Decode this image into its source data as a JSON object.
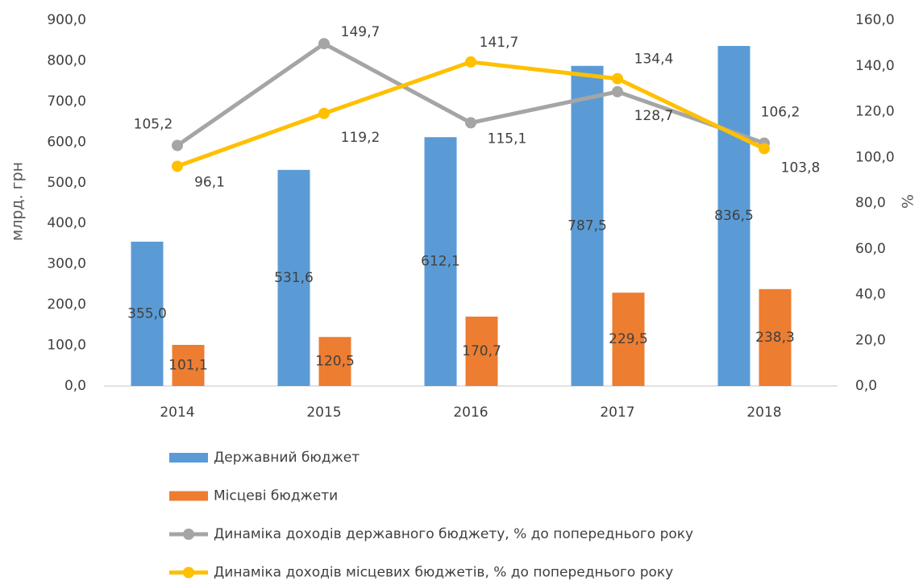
{
  "chart_data": {
    "type": "bar",
    "categories": [
      "2014",
      "2015",
      "2016",
      "2017",
      "2018"
    ],
    "y_label": "млрд. грн",
    "y2_label": "%",
    "ylim": [
      0,
      900
    ],
    "yticks": [
      {
        "value": 0,
        "label": "0,0"
      },
      {
        "value": 100,
        "label": "100,0"
      },
      {
        "value": 200,
        "label": "200,0"
      },
      {
        "value": 300,
        "label": "300,0"
      },
      {
        "value": 400,
        "label": "400,0"
      },
      {
        "value": 500,
        "label": "500,0"
      },
      {
        "value": 600,
        "label": "600,0"
      },
      {
        "value": 700,
        "label": "700,0"
      },
      {
        "value": 800,
        "label": "800,0"
      },
      {
        "value": 900,
        "label": "900,0"
      }
    ],
    "y2lim": [
      0,
      160
    ],
    "y2ticks": [
      {
        "value": 0,
        "label": "0,0"
      },
      {
        "value": 20,
        "label": "20,0"
      },
      {
        "value": 40,
        "label": "40,0"
      },
      {
        "value": 60,
        "label": "60,0"
      },
      {
        "value": 80,
        "label": "80,0"
      },
      {
        "value": 100,
        "label": "100,0"
      },
      {
        "value": 120,
        "label": "120,0"
      },
      {
        "value": 140,
        "label": "140,0"
      },
      {
        "value": 160,
        "label": "160,0"
      }
    ],
    "grid": false,
    "legend": "bottom",
    "series": [
      {
        "name": "Державний бюджет",
        "type": "bar",
        "color": "#5b9bd5",
        "values": [
          355.0,
          531.6,
          612.1,
          787.5,
          836.5
        ],
        "value_labels": [
          "355,0",
          "531,6",
          "612,1",
          "787,5",
          "836,5"
        ]
      },
      {
        "name": "Місцеві бюджети",
        "type": "bar",
        "color": "#ed7d31",
        "values": [
          101.1,
          120.5,
          170.7,
          229.5,
          238.3
        ],
        "value_labels": [
          "101,1",
          "120,5",
          "170,7",
          "229,5",
          "238,3"
        ]
      },
      {
        "name": "Динаміка доходів державного бюджету, % до попереднього року",
        "type": "line",
        "axis": "y2",
        "color": "#a5a5a5",
        "values": [
          105.2,
          149.7,
          115.1,
          128.7,
          106.2
        ],
        "value_labels": [
          "105,2",
          "149,7",
          "115,1",
          "128,7",
          "106,2"
        ]
      },
      {
        "name": "Динаміка доходів місцевих бюджетів, % до попереднього року",
        "type": "line",
        "axis": "y2",
        "color": "#ffc000",
        "values": [
          96.1,
          119.2,
          141.7,
          134.4,
          103.8
        ],
        "value_labels": [
          "96,1",
          "119,2",
          "141,7",
          "134,4",
          "103,8"
        ]
      }
    ]
  }
}
